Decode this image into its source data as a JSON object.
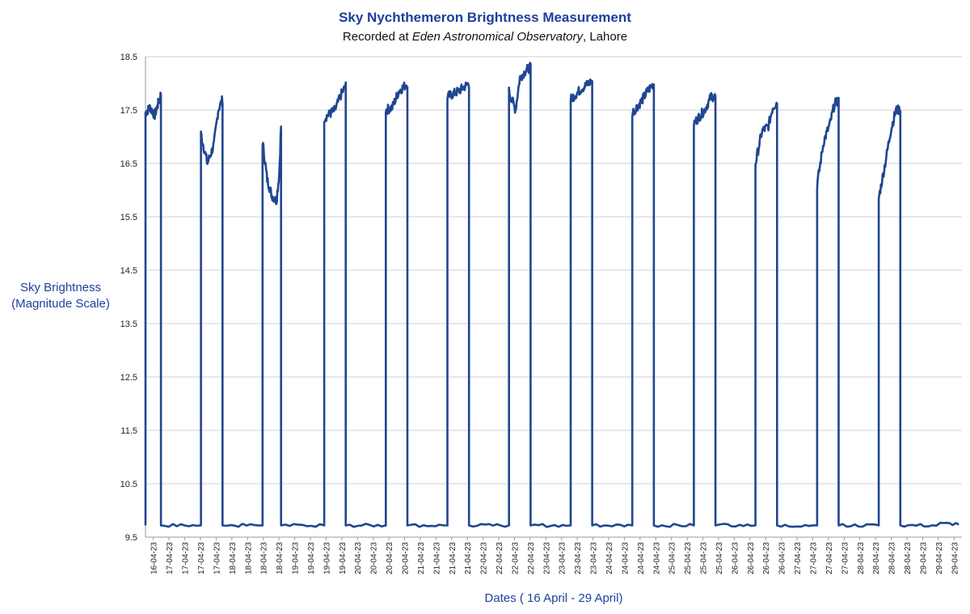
{
  "chart_data": {
    "type": "line",
    "title": "Sky Nychthemeron Brightness Measurement",
    "subtitle_prefix": "Recorded at ",
    "subtitle_observatory": "Eden Astronomical Observatory",
    "subtitle_suffix": ", Lahore",
    "ylabel_line1": "Sky Brightness",
    "ylabel_line2": "(Magnitude Scale)",
    "xlabel": "Dates ( 16 April - 29 April)",
    "ylim": [
      9.5,
      18.5
    ],
    "yticks": [
      9.5,
      10.5,
      11.5,
      12.5,
      13.5,
      14.5,
      15.5,
      16.5,
      17.5,
      18.5
    ],
    "grid": "horizontal",
    "line_color": "#1f4690",
    "xtick_labels": [
      "16-04-23",
      "17-04-23",
      "17-04-23",
      "17-04-23",
      "17-04-23",
      "18-04-23",
      "18-04-23",
      "18-04-23",
      "18-04-23",
      "19-04-23",
      "19-04-23",
      "19-04-23",
      "19-04-23",
      "20-04-23",
      "20-04-23",
      "20-04-23",
      "20-04-23",
      "21-04-23",
      "21-04-23",
      "21-04-23",
      "21-04-23",
      "22-04-23",
      "22-04-23",
      "22-04-23",
      "22-04-23",
      "23-04-23",
      "23-04-23",
      "23-04-23",
      "23-04-23",
      "24-04-23",
      "24-04-23",
      "24-04-23",
      "24-04-23",
      "25-04-23",
      "25-04-23",
      "25-04-23",
      "25-04-23",
      "26-04-23",
      "26-04-23",
      "26-04-23",
      "26-04-23",
      "27-04-23",
      "27-04-23",
      "27-04-23",
      "27-04-23",
      "28-04-23",
      "28-04-23",
      "28-04-23",
      "28-04-23",
      "29-04-23",
      "29-04-23",
      "29-04-23"
    ],
    "series": [
      {
        "x_start": "16-04-23",
        "x_end": "29-04-23",
        "night_ranges": [
          [
            16.0,
            16.25
          ],
          [
            16.9,
            17.25
          ],
          [
            17.9,
            18.2
          ],
          [
            18.9,
            19.25
          ],
          [
            19.9,
            20.25
          ],
          [
            20.9,
            21.25
          ],
          [
            21.9,
            22.25
          ],
          [
            22.9,
            23.25
          ],
          [
            23.9,
            24.25
          ],
          [
            24.9,
            25.25
          ],
          [
            25.9,
            26.25
          ],
          [
            26.9,
            27.25
          ],
          [
            27.9,
            28.25
          ],
          [
            28.9,
            29.2
          ]
        ],
        "day_level": 9.72,
        "night_profiles": [
          [
            [
              0.0,
              17.45
            ],
            [
              0.3,
              17.55
            ],
            [
              0.6,
              17.4
            ],
            [
              1.0,
              17.8
            ]
          ],
          [
            [
              0.0,
              17.05
            ],
            [
              0.3,
              16.5
            ],
            [
              0.6,
              16.85
            ],
            [
              0.8,
              17.5
            ],
            [
              1.0,
              17.7
            ]
          ],
          [
            [
              0.0,
              16.9
            ],
            [
              0.25,
              16.2
            ],
            [
              0.5,
              15.9
            ],
            [
              0.75,
              15.8
            ],
            [
              0.9,
              16.3
            ],
            [
              1.0,
              17.2
            ]
          ],
          [
            [
              0.0,
              17.35
            ],
            [
              0.5,
              17.5
            ],
            [
              0.8,
              17.8
            ],
            [
              1.0,
              17.95
            ]
          ],
          [
            [
              0.0,
              17.5
            ],
            [
              0.3,
              17.55
            ],
            [
              0.6,
              17.85
            ],
            [
              1.0,
              18.0
            ]
          ],
          [
            [
              0.0,
              17.75
            ],
            [
              0.5,
              17.85
            ],
            [
              1.0,
              18.0
            ]
          ],
          [
            [
              0.0,
              17.85
            ],
            [
              0.3,
              17.5
            ],
            [
              0.5,
              18.1
            ],
            [
              0.8,
              18.25
            ],
            [
              1.0,
              18.3
            ]
          ],
          [
            [
              0.0,
              17.7
            ],
            [
              0.5,
              17.9
            ],
            [
              1.0,
              18.05
            ]
          ],
          [
            [
              0.0,
              17.45
            ],
            [
              0.4,
              17.65
            ],
            [
              0.7,
              17.85
            ],
            [
              1.0,
              18.0
            ]
          ],
          [
            [
              0.0,
              17.25
            ],
            [
              0.5,
              17.5
            ],
            [
              0.8,
              17.75
            ],
            [
              1.0,
              17.75
            ]
          ],
          [
            [
              0.0,
              16.5
            ],
            [
              0.3,
              17.1
            ],
            [
              0.6,
              17.2
            ],
            [
              0.8,
              17.55
            ],
            [
              1.0,
              17.65
            ]
          ],
          [
            [
              0.0,
              16.1
            ],
            [
              0.3,
              16.9
            ],
            [
              0.6,
              17.25
            ],
            [
              0.8,
              17.6
            ],
            [
              1.0,
              17.7
            ]
          ],
          [
            [
              0.0,
              15.85
            ],
            [
              0.3,
              16.5
            ],
            [
              0.55,
              17.1
            ],
            [
              0.8,
              17.5
            ],
            [
              1.0,
              17.5
            ]
          ],
          [
            [
              0.0,
              9.75
            ],
            [
              1.0,
              9.75
            ]
          ]
        ]
      }
    ]
  }
}
